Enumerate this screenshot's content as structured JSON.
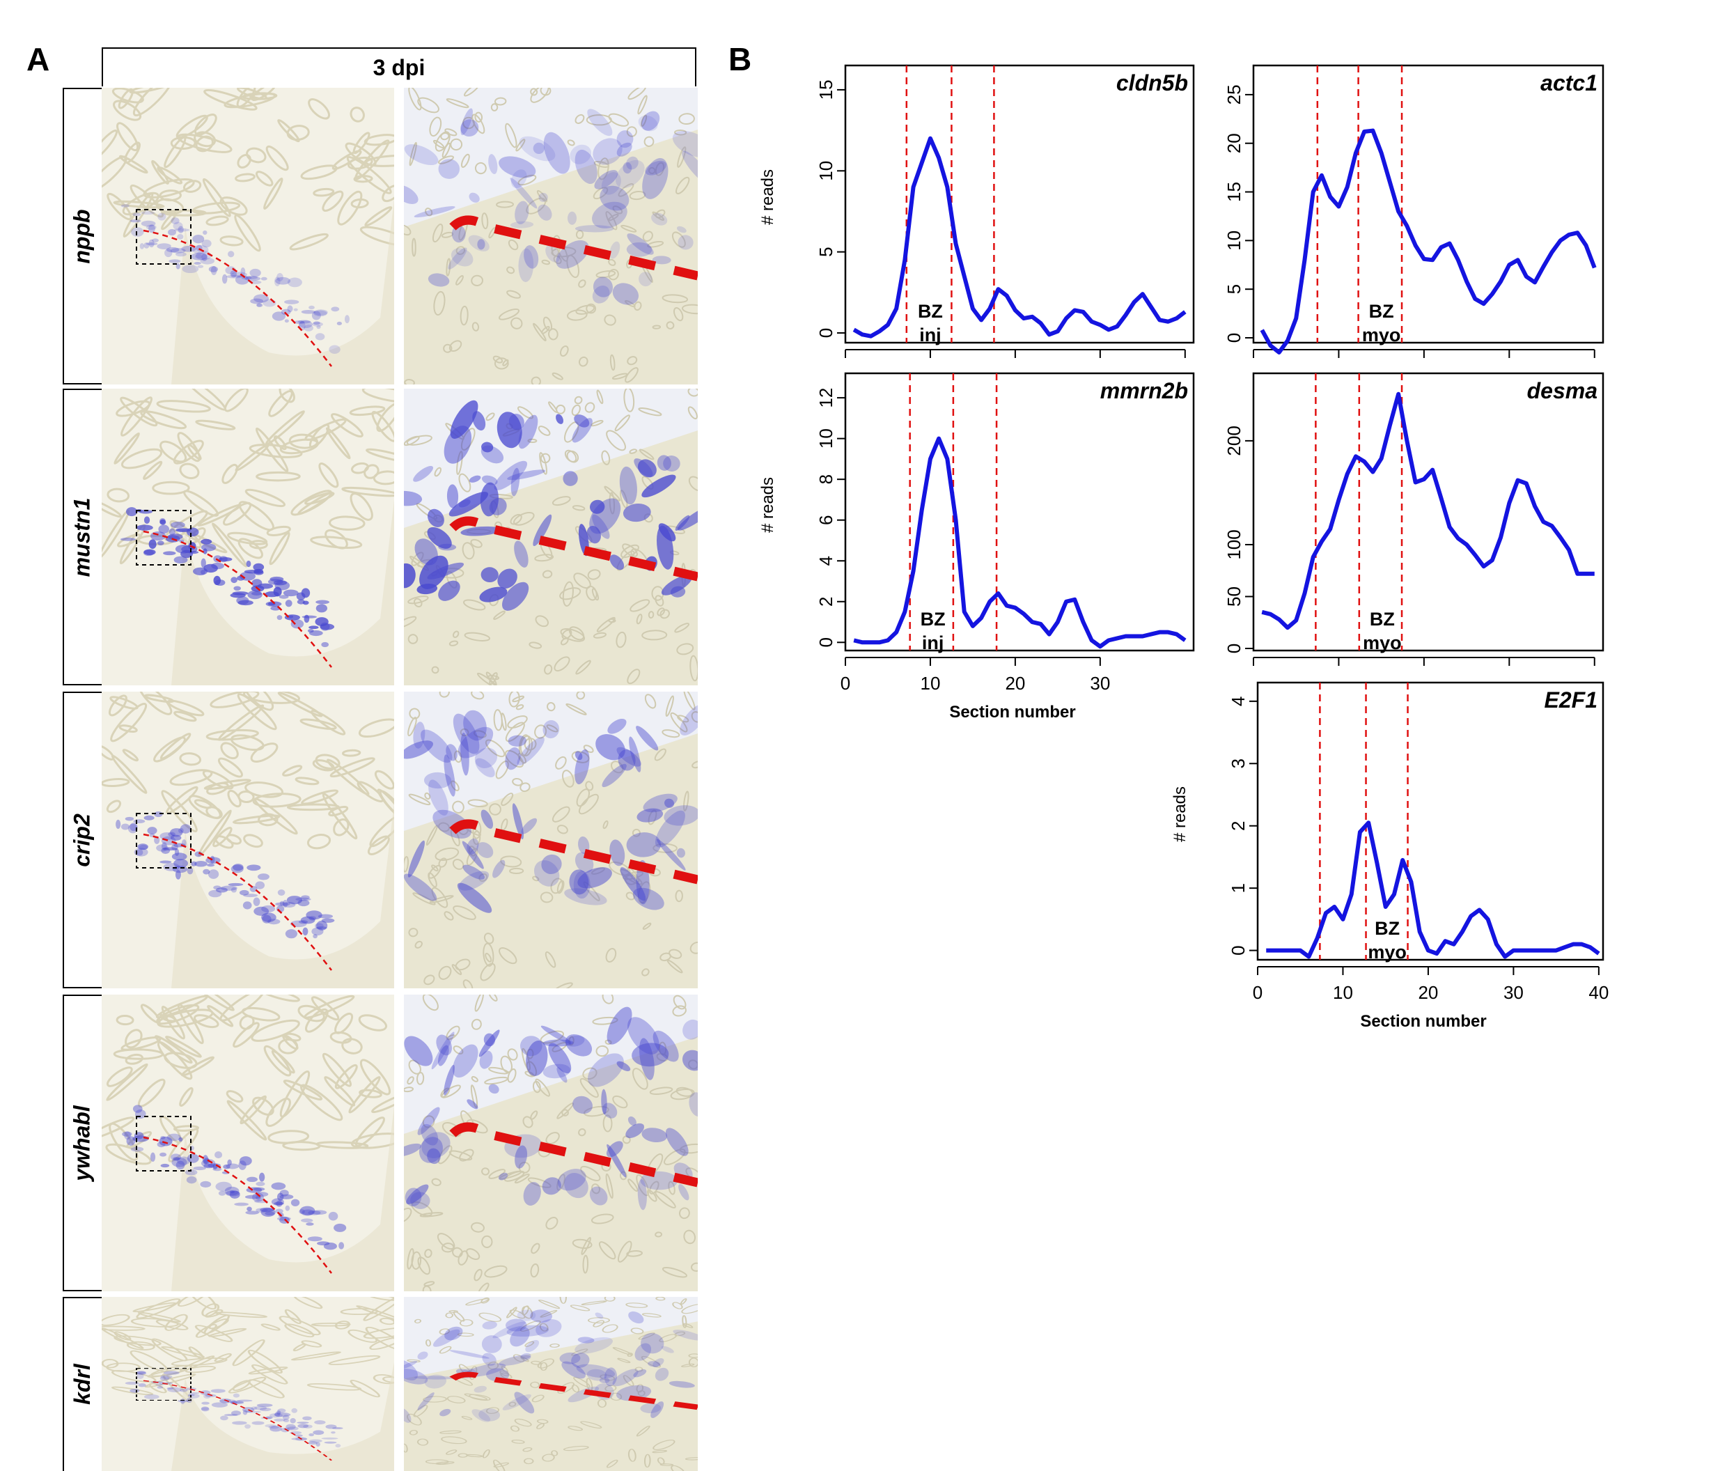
{
  "panel_a": {
    "label": "A",
    "header": "3 dpi",
    "rows": [
      {
        "gene": "nppb",
        "stain": "light"
      },
      {
        "gene": "mustn1",
        "stain": "heavy"
      },
      {
        "gene": "crip2",
        "stain": "medium"
      },
      {
        "gene": "ywhabl",
        "stain": "medium"
      },
      {
        "gene": "kdrl",
        "stain": "light"
      }
    ]
  },
  "panel_b": {
    "label": "B"
  },
  "colors": {
    "line": "#1414e0",
    "dashed": "#e01010",
    "tissue": "#ece8d6",
    "stain": "#4a4ad0"
  },
  "chart_data": [
    {
      "type": "line",
      "gene": "cldn5b",
      "ylabel": "# reads",
      "xlabel": "",
      "x_ticks": [
        0,
        10,
        20,
        30,
        40
      ],
      "x_tick_labels": [],
      "y_ticks": [
        0,
        5,
        10,
        15
      ],
      "xlim": [
        0,
        41
      ],
      "ylim": [
        -0.6,
        16.5
      ],
      "vlines": [
        7.2,
        12.5,
        17.5
      ],
      "bz_text": [
        "BZ",
        "inj"
      ],
      "bz_x": 10,
      "x": [
        1,
        2,
        3,
        4,
        5,
        6,
        7,
        8,
        9,
        10,
        11,
        12,
        13,
        14,
        15,
        16,
        17,
        18,
        19,
        20,
        21,
        22,
        23,
        24,
        25,
        26,
        27,
        28,
        29,
        30,
        31,
        32,
        33,
        34,
        35,
        36,
        37,
        38,
        39,
        40
      ],
      "values": [
        0.2,
        -0.1,
        -0.2,
        0.1,
        0.5,
        1.5,
        4.5,
        9,
        10.5,
        12,
        10.8,
        9,
        5.5,
        3.5,
        1.5,
        0.8,
        1.5,
        2.7,
        2.3,
        1.4,
        0.9,
        1.0,
        0.6,
        -0.1,
        0.1,
        0.9,
        1.4,
        1.3,
        0.7,
        0.5,
        0.2,
        0.4,
        1.1,
        1.9,
        2.4,
        1.6,
        0.8,
        0.7,
        0.9,
        1.3
      ]
    },
    {
      "type": "line",
      "gene": "actc1",
      "ylabel": "",
      "xlabel": "",
      "x_ticks": [
        0,
        10,
        20,
        30,
        40
      ],
      "x_tick_labels": [],
      "y_ticks": [
        0,
        5,
        10,
        15,
        20,
        25
      ],
      "xlim": [
        0,
        41
      ],
      "ylim": [
        -0.5,
        28
      ],
      "vlines": [
        7.5,
        12.3,
        17.4
      ],
      "bz_text": [
        "BZ",
        "myo"
      ],
      "bz_x": 15,
      "x": [
        1,
        2,
        3,
        4,
        5,
        6,
        7,
        8,
        9,
        10,
        11,
        12,
        13,
        14,
        15,
        16,
        17,
        18,
        19,
        20,
        21,
        22,
        23,
        24,
        25,
        26,
        27,
        28,
        29,
        30,
        31,
        32,
        33,
        34,
        35,
        36,
        37,
        38,
        39,
        40
      ],
      "values": [
        0.8,
        -0.8,
        -1.5,
        -0.3,
        2,
        8,
        15,
        16.7,
        14.5,
        13.5,
        15.5,
        19,
        21.2,
        21.3,
        19,
        16,
        13,
        11.5,
        9.5,
        8.1,
        8,
        9.3,
        9.7,
        8,
        5.8,
        4,
        3.5,
        4.5,
        5.8,
        7.5,
        8,
        6.3,
        5.7,
        7.3,
        8.8,
        10,
        10.6,
        10.8,
        9.5,
        7.2
      ]
    },
    {
      "type": "line",
      "gene": "mmrn2b",
      "ylabel": "# reads",
      "xlabel": "Section number",
      "x_ticks": [
        0,
        10,
        20,
        30
      ],
      "x_tick_labels": [
        "0",
        "10",
        "20",
        "30"
      ],
      "y_ticks": [
        0,
        2,
        4,
        6,
        8,
        10,
        12
      ],
      "xlim": [
        0,
        41
      ],
      "ylim": [
        -0.4,
        13.2
      ],
      "vlines": [
        7.6,
        12.7,
        17.8
      ],
      "bz_text": [
        "BZ",
        "inj"
      ],
      "bz_x": 10.3,
      "x": [
        1,
        2,
        3,
        4,
        5,
        6,
        7,
        8,
        9,
        10,
        11,
        12,
        13,
        14,
        15,
        16,
        17,
        18,
        19,
        20,
        21,
        22,
        23,
        24,
        25,
        26,
        27,
        28,
        29,
        30,
        31,
        32,
        33,
        34,
        35,
        36,
        37,
        38,
        39,
        40
      ],
      "values": [
        0.1,
        0,
        0,
        0,
        0.1,
        0.5,
        1.5,
        3.5,
        6.5,
        9,
        10,
        9,
        6,
        1.5,
        0.8,
        1.2,
        2,
        2.4,
        1.8,
        1.7,
        1.4,
        1,
        0.9,
        0.4,
        1,
        2,
        2.1,
        1,
        0.1,
        -0.2,
        0.1,
        0.2,
        0.3,
        0.3,
        0.3,
        0.4,
        0.5,
        0.5,
        0.4,
        0.1
      ]
    },
    {
      "type": "line",
      "gene": "desma",
      "ylabel": "",
      "xlabel": "",
      "x_ticks": [
        0,
        10,
        20,
        30,
        40
      ],
      "x_tick_labels": [],
      "y_ticks": [
        0,
        50,
        100,
        200
      ],
      "xlim": [
        0,
        41
      ],
      "ylim": [
        -2,
        265
      ],
      "vlines": [
        7.3,
        12.4,
        17.4
      ],
      "bz_text": [
        "BZ",
        "myo"
      ],
      "bz_x": 15.1,
      "x": [
        1,
        2,
        3,
        4,
        5,
        6,
        7,
        8,
        9,
        10,
        11,
        12,
        13,
        14,
        15,
        16,
        17,
        18,
        19,
        20,
        21,
        22,
        23,
        24,
        25,
        26,
        27,
        28,
        29,
        30,
        31,
        32,
        33,
        34,
        35,
        36,
        37,
        38,
        39,
        40
      ],
      "values": [
        35,
        33,
        28,
        20,
        27,
        53,
        88,
        103,
        115,
        143,
        168,
        185,
        180,
        170,
        183,
        215,
        245,
        200,
        160,
        163,
        172,
        145,
        117,
        106,
        100,
        90,
        79,
        85,
        107,
        140,
        162,
        159,
        137,
        122,
        118,
        107,
        95,
        72,
        72,
        72
      ]
    },
    {
      "type": "line",
      "gene": "E2F1",
      "ylabel": "# reads",
      "xlabel": "Section number",
      "x_ticks": [
        0,
        10,
        20,
        30,
        40
      ],
      "x_tick_labels": [
        "0",
        "10",
        "20",
        "30",
        "40"
      ],
      "y_ticks": [
        0,
        1,
        2,
        3,
        4
      ],
      "xlim": [
        0,
        40.5
      ],
      "ylim": [
        -0.15,
        4.3
      ],
      "vlines": [
        7.3,
        12.7,
        17.6
      ],
      "bz_text": [
        "BZ",
        "myo"
      ],
      "bz_x": 15.2,
      "x": [
        1,
        2,
        3,
        4,
        5,
        6,
        7,
        8,
        9,
        10,
        11,
        12,
        13,
        14,
        15,
        16,
        17,
        18,
        19,
        20,
        21,
        22,
        23,
        24,
        25,
        26,
        27,
        28,
        29,
        30,
        31,
        32,
        33,
        34,
        35,
        36,
        37,
        38,
        39,
        40
      ],
      "values": [
        0,
        0,
        0,
        0,
        0,
        -0.1,
        0.2,
        0.6,
        0.7,
        0.5,
        0.9,
        1.9,
        2.05,
        1.4,
        0.7,
        0.9,
        1.45,
        1.1,
        0.3,
        0,
        -0.05,
        0.15,
        0.1,
        0.3,
        0.55,
        0.65,
        0.5,
        0.1,
        -0.1,
        0,
        0,
        0,
        0,
        0,
        0,
        0.05,
        0.1,
        0.1,
        0.05,
        -0.05
      ]
    }
  ]
}
